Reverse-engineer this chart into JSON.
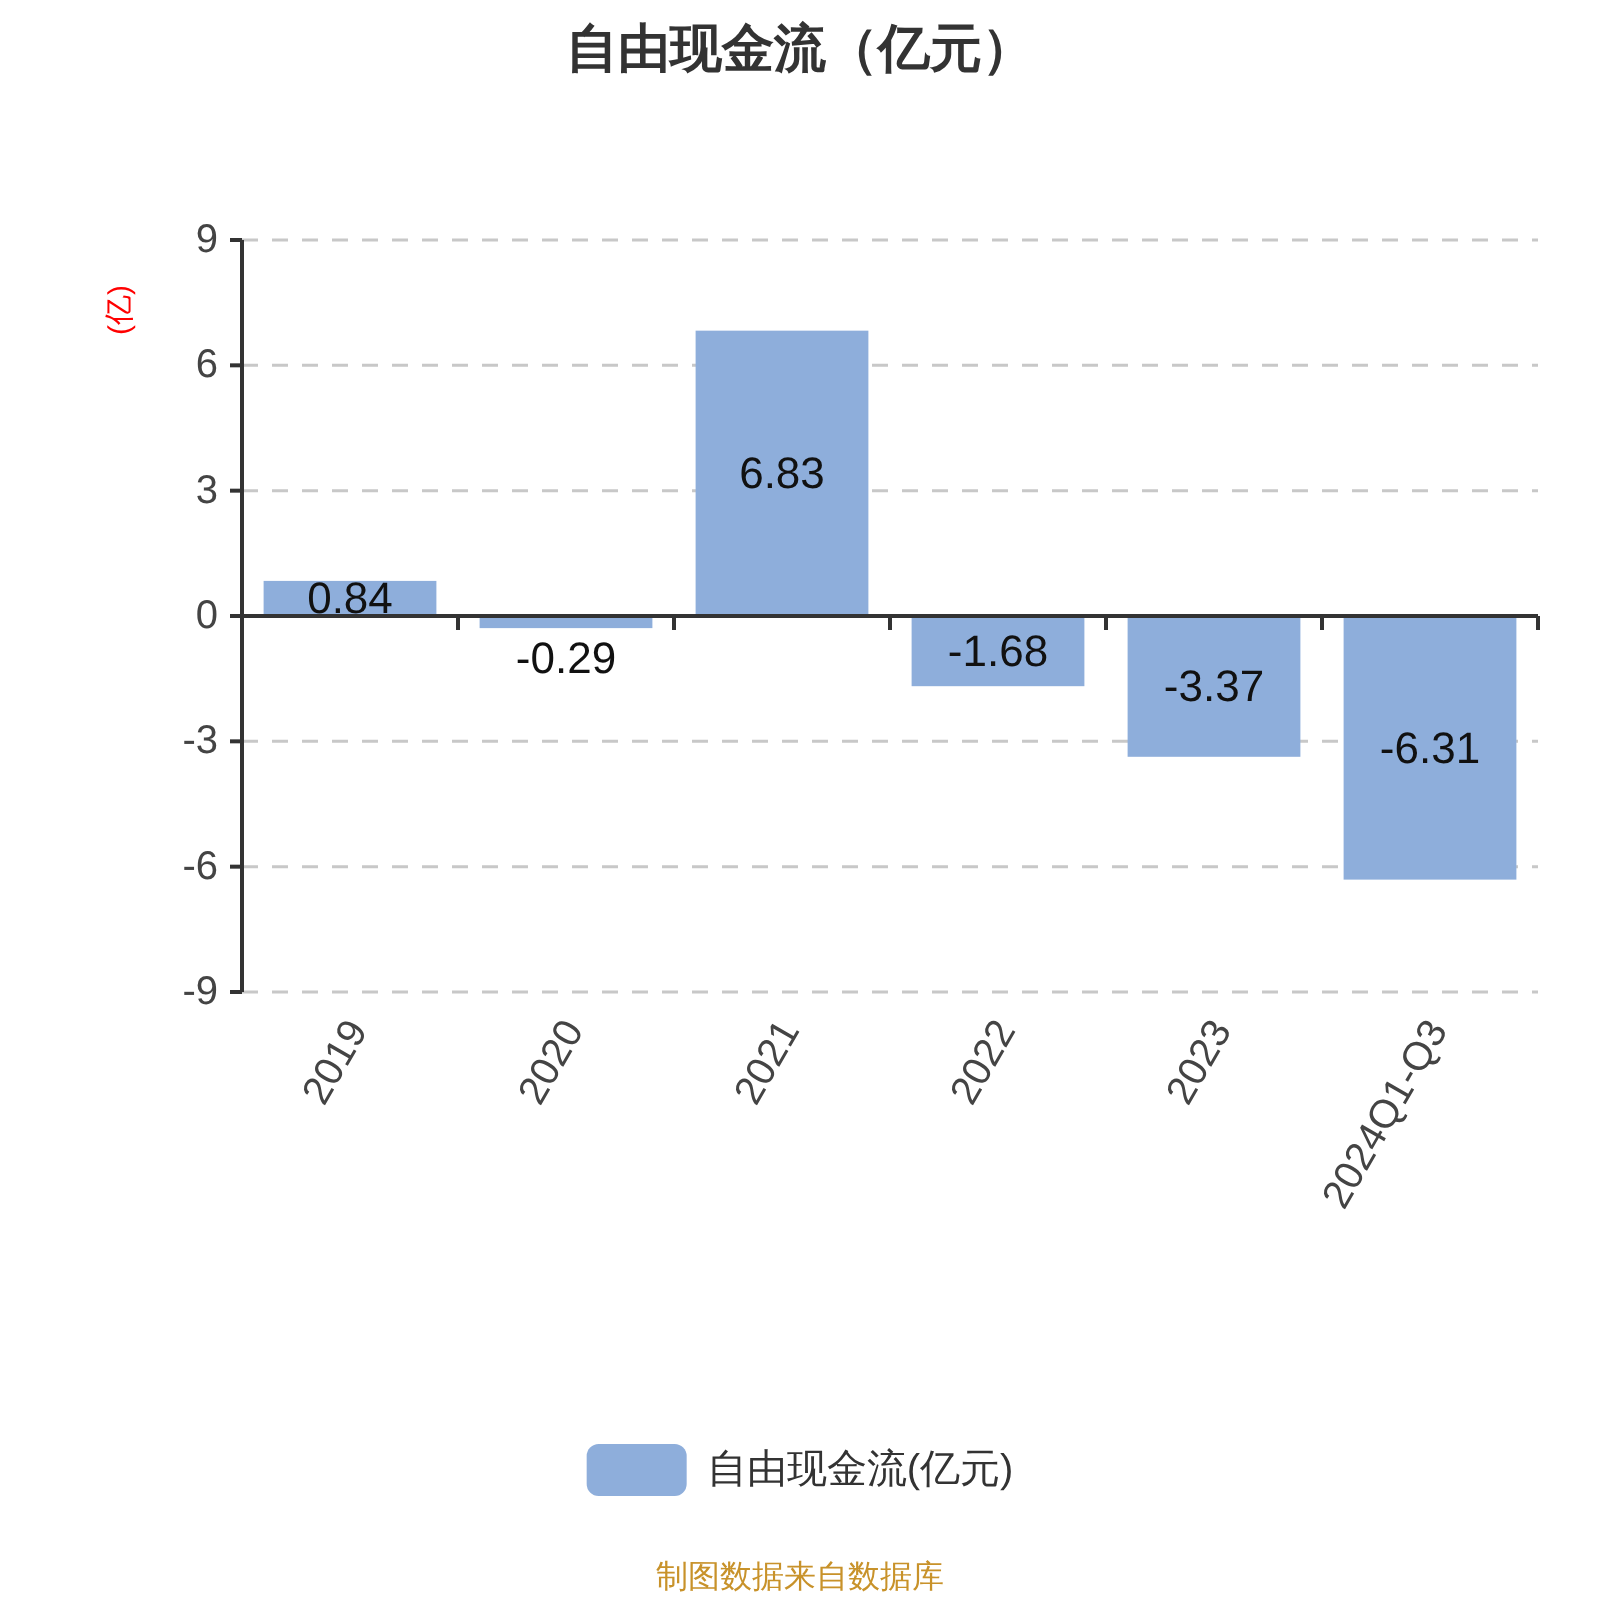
{
  "chart_data": {
    "type": "bar",
    "title": "自由现金流（亿元）",
    "ylabel": "(亿)",
    "categories": [
      "2019",
      "2020",
      "2021",
      "2022",
      "2023",
      "2024Q1-Q3"
    ],
    "series": [
      {
        "name": "自由现金流(亿元)",
        "color": "#8eaedb",
        "values": [
          0.84,
          -0.29,
          6.83,
          -1.68,
          -3.37,
          -6.31
        ]
      }
    ],
    "ylim": [
      -9,
      9
    ],
    "yticks": [
      -9,
      -6,
      -3,
      0,
      3,
      6,
      9
    ],
    "grid": "y",
    "legend": "bottom",
    "data_labels": true,
    "annotations": [
      "制图数据来自数据库"
    ]
  }
}
